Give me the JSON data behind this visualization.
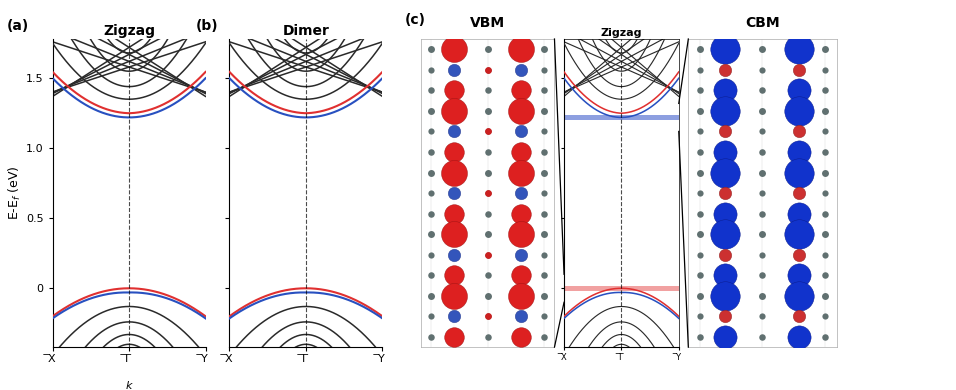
{
  "fig_width": 9.56,
  "fig_height": 3.9,
  "dpi": 100,
  "background": "#ffffff",
  "panel_a_title": "Zigzag",
  "panel_b_title": "Dimer",
  "panel_c_title_vbm": "VBM",
  "panel_c_title_cbm": "CBM",
  "panel_c_zigzag": "Zigzag",
  "ylabel": "E-E$_f$ (eV)",
  "xlabel_k": "k",
  "xtick_labels": [
    "̅X",
    "̅Γ",
    "̅Y"
  ],
  "ylim": [
    -0.42,
    1.78
  ],
  "yticks": [
    0.0,
    0.5,
    1.0,
    1.5
  ],
  "band_color_black": "#2a2a2a",
  "band_color_red": "#e03030",
  "band_color_blue": "#2850c0",
  "vbm_energy": 0.0,
  "cbm_energy": 1.22,
  "cbm_highlight_blue": "#3050c8",
  "vbm_highlight_red": "#e03030",
  "lw_colored": 1.5,
  "lw_black": 1.1
}
